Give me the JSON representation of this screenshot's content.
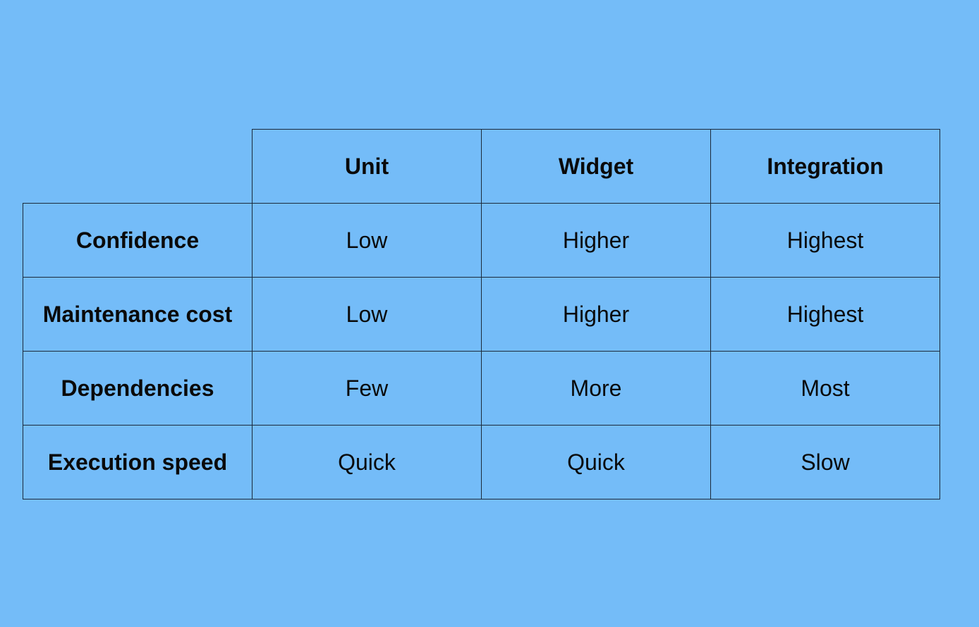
{
  "table": {
    "columns": [
      "Unit",
      "Widget",
      "Integration"
    ],
    "rows": [
      {
        "label": "Confidence",
        "cells": [
          "Low",
          "Higher",
          "Highest"
        ]
      },
      {
        "label": "Maintenance cost",
        "cells": [
          "Low",
          "Higher",
          "Highest"
        ]
      },
      {
        "label": "Dependencies",
        "cells": [
          "Few",
          "More",
          "Most"
        ]
      },
      {
        "label": "Execution speed",
        "cells": [
          "Quick",
          "Quick",
          "Slow"
        ]
      }
    ]
  },
  "colors": {
    "background": "#74BCF8",
    "border": "#1c2a3a",
    "text": "#0a0a0a"
  }
}
